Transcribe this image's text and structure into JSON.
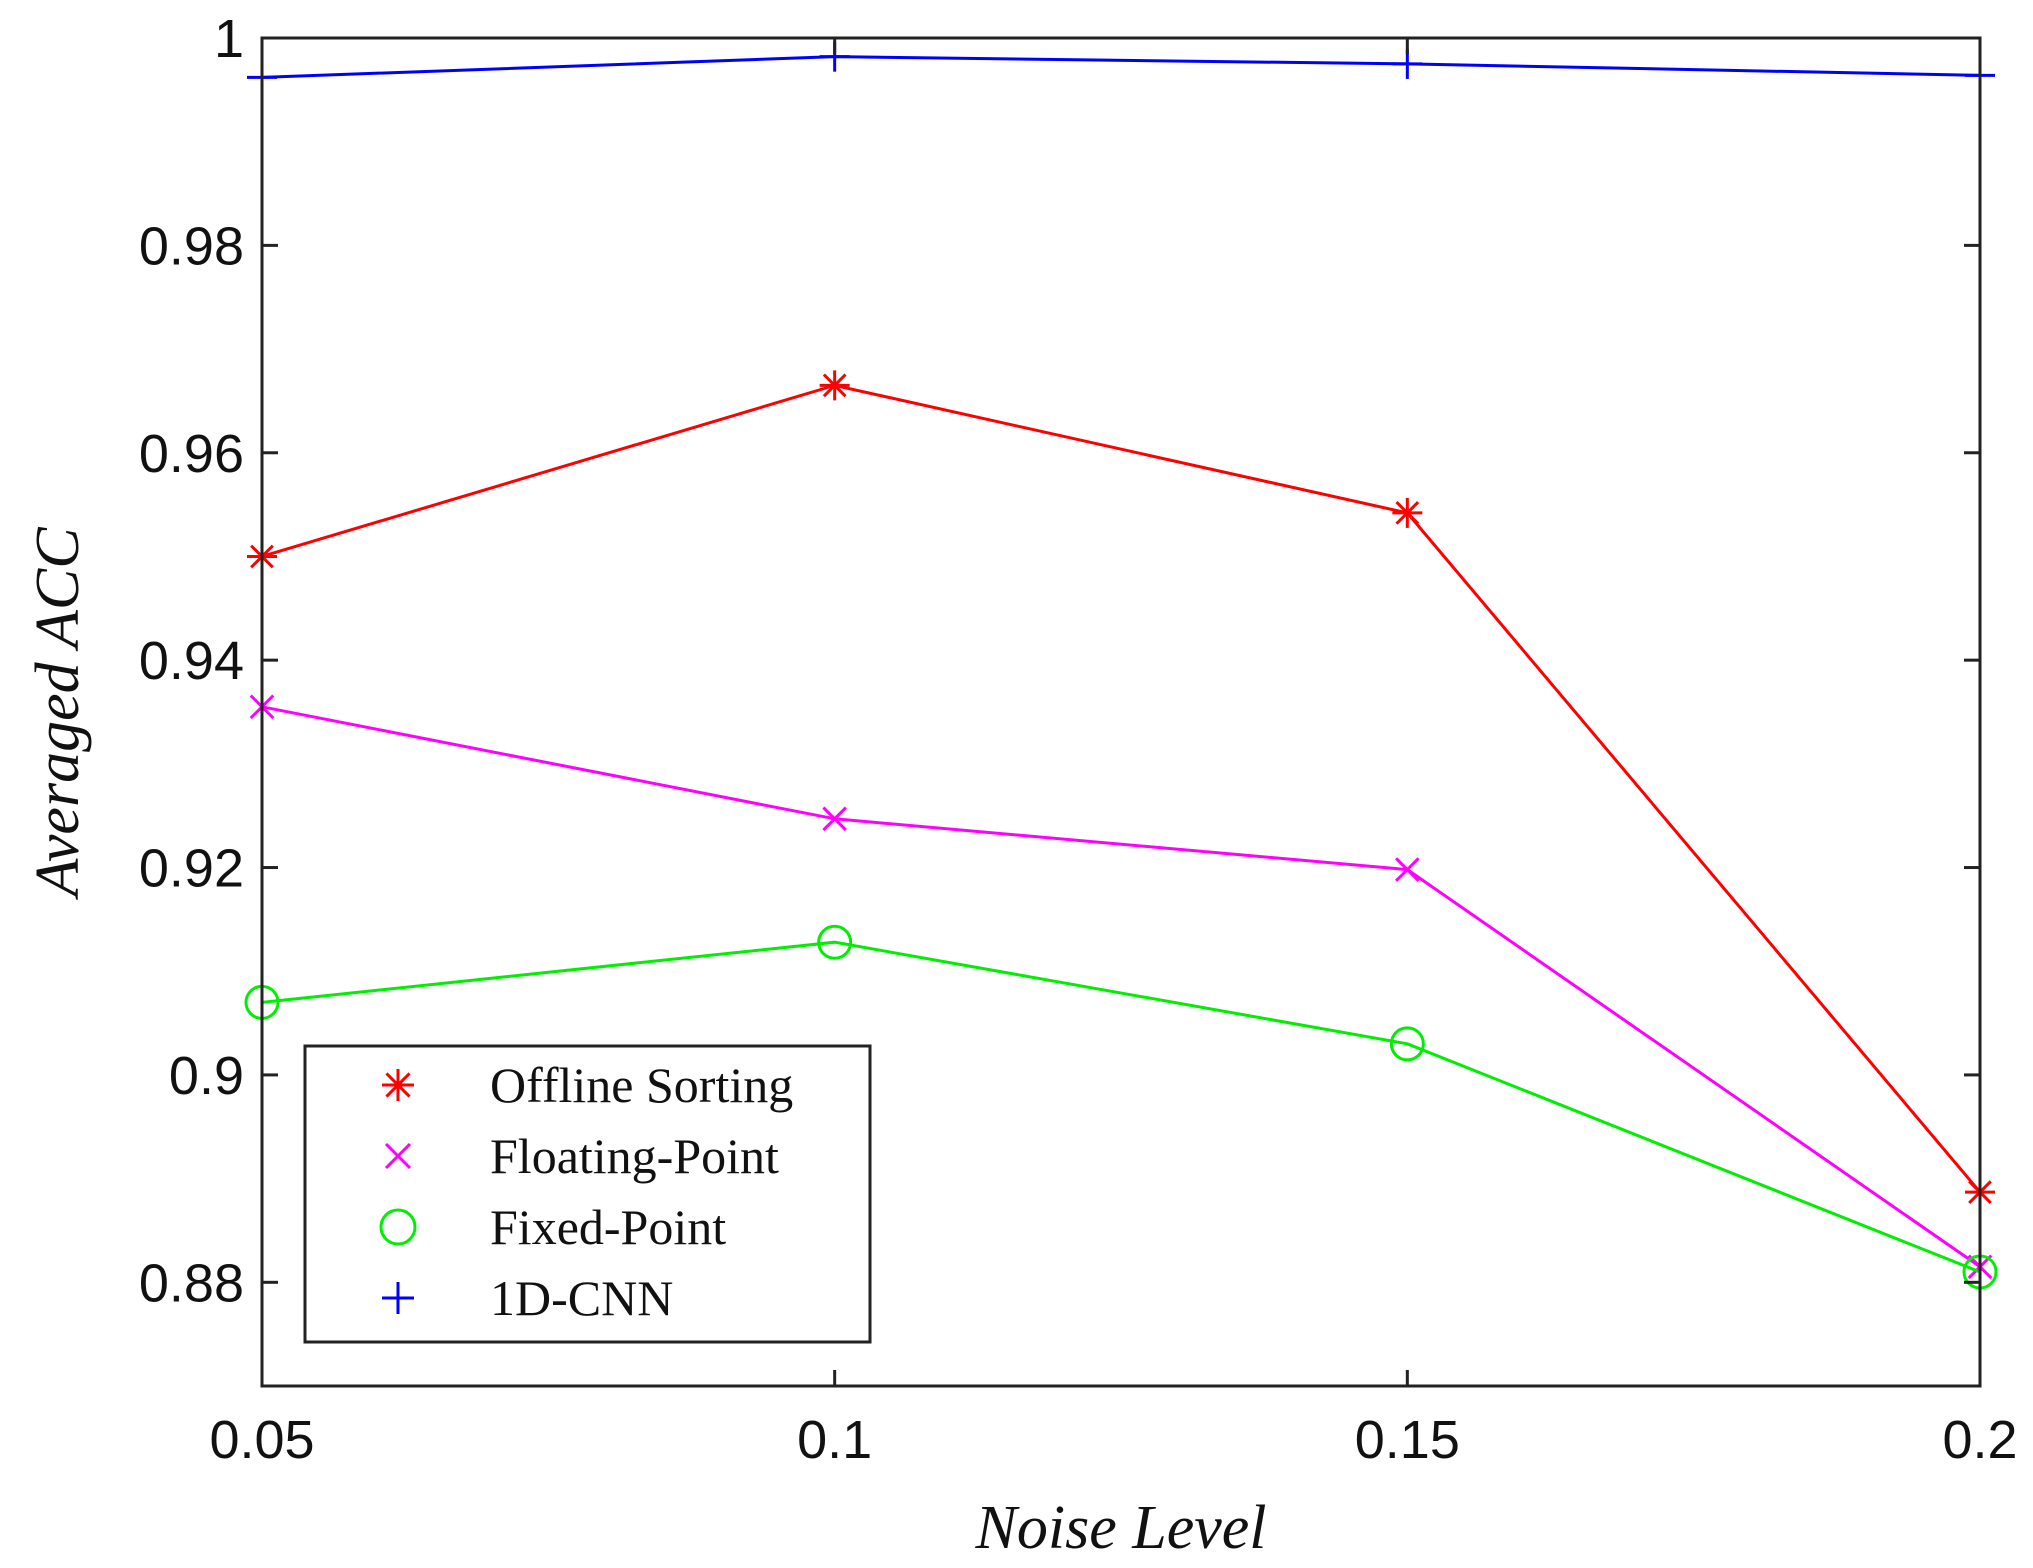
{
  "chart_data": {
    "type": "line",
    "xlabel": "Noise Level",
    "ylabel": "Averaged ACC",
    "x": [
      0.05,
      0.1,
      0.15,
      0.2
    ],
    "x_tick_labels": [
      "0.05",
      "0.1",
      "0.15",
      "0.2"
    ],
    "xlim": [
      0.05,
      0.2
    ],
    "ylim": [
      0.87,
      1.0
    ],
    "y_ticks": [
      0.88,
      0.9,
      0.92,
      0.94,
      0.96,
      0.98,
      1.0
    ],
    "y_tick_labels": [
      "0.88",
      "0.9",
      "0.92",
      "0.94",
      "0.96",
      "0.98",
      "1"
    ],
    "grid": false,
    "legend_position": "bottom-left",
    "series": [
      {
        "name": "Offline Sorting",
        "color": "#ff0000",
        "marker": "asterisk",
        "values": [
          0.95,
          0.9665,
          0.9542,
          0.8887
        ]
      },
      {
        "name": "Floating-Point",
        "color": "#ff00ff",
        "marker": "x",
        "values": [
          0.9355,
          0.9247,
          0.9198,
          0.8815
        ]
      },
      {
        "name": "Fixed-Point",
        "color": "#00ee00",
        "marker": "circle",
        "values": [
          0.907,
          0.9128,
          0.903,
          0.881
        ]
      },
      {
        "name": "1D-CNN",
        "color": "#0000ff",
        "marker": "plus",
        "values": [
          0.9962,
          0.9982,
          0.9975,
          0.9964
        ]
      }
    ]
  }
}
